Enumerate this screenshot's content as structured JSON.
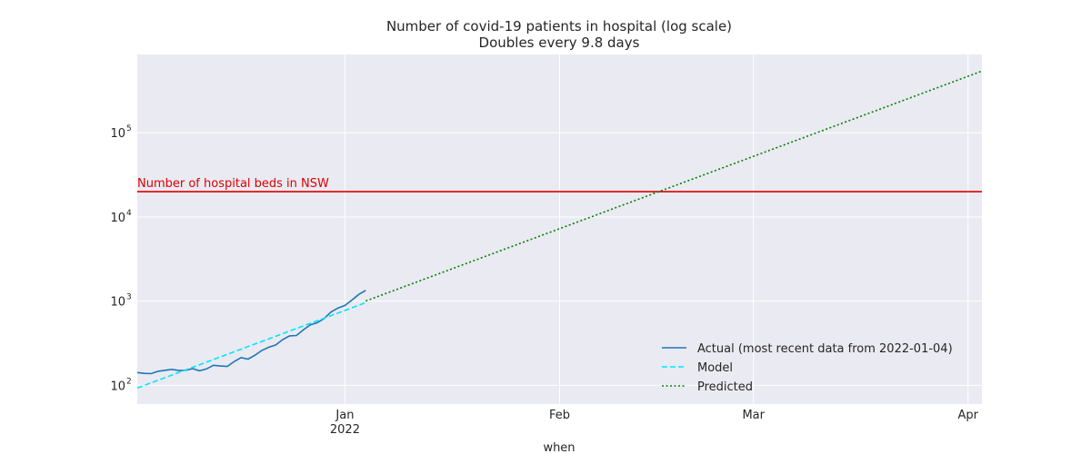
{
  "chart_data": {
    "type": "line",
    "title": "Number of covid-19 patients in hospital (log scale)",
    "subtitle": "Doubles every 9.8 days",
    "xlabel": "when",
    "ylabel": "",
    "y_scale": "log",
    "xlim": [
      "2021-12-02",
      "2022-04-03"
    ],
    "ylim": [
      60,
      850000
    ],
    "grid": true,
    "x_ticks": [
      {
        "date": "2022-01-01",
        "label": "Jan",
        "sublabel": "2022"
      },
      {
        "date": "2022-02-01",
        "label": "Feb",
        "sublabel": ""
      },
      {
        "date": "2022-03-01",
        "label": "Mar",
        "sublabel": ""
      },
      {
        "date": "2022-04-01",
        "label": "Apr",
        "sublabel": ""
      }
    ],
    "y_ticks": [
      {
        "value": 100,
        "base": "10",
        "exp": "2"
      },
      {
        "value": 1000,
        "base": "10",
        "exp": "3"
      },
      {
        "value": 10000,
        "base": "10",
        "exp": "4"
      },
      {
        "value": 100000,
        "base": "10",
        "exp": "5"
      }
    ],
    "hline": {
      "value": 20000,
      "label": "Number of hospital beds in NSW",
      "color": "#dd0000"
    },
    "legend_position": "bottom-right",
    "series": [
      {
        "name": "Actual (most recent data from 2022-01-04)",
        "style": "solid",
        "color": "#1f77b4",
        "points": [
          [
            "2021-12-02",
            142
          ],
          [
            "2021-12-03",
            139
          ],
          [
            "2021-12-04",
            138
          ],
          [
            "2021-12-05",
            147
          ],
          [
            "2021-12-06",
            151
          ],
          [
            "2021-12-07",
            155
          ],
          [
            "2021-12-08",
            150
          ],
          [
            "2021-12-09",
            151
          ],
          [
            "2021-12-10",
            158
          ],
          [
            "2021-12-11",
            149
          ],
          [
            "2021-12-12",
            157
          ],
          [
            "2021-12-13",
            173
          ],
          [
            "2021-12-14",
            170
          ],
          [
            "2021-12-15",
            168
          ],
          [
            "2021-12-16",
            192
          ],
          [
            "2021-12-17",
            214
          ],
          [
            "2021-12-18",
            205
          ],
          [
            "2021-12-19",
            228
          ],
          [
            "2021-12-20",
            260
          ],
          [
            "2021-12-21",
            284
          ],
          [
            "2021-12-22",
            302
          ],
          [
            "2021-12-23",
            350
          ],
          [
            "2021-12-24",
            387
          ],
          [
            "2021-12-25",
            391
          ],
          [
            "2021-12-26",
            458
          ],
          [
            "2021-12-27",
            524
          ],
          [
            "2021-12-28",
            555
          ],
          [
            "2021-12-29",
            624
          ],
          [
            "2021-12-30",
            746
          ],
          [
            "2021-12-31",
            829
          ],
          [
            "2022-01-01",
            889
          ],
          [
            "2022-01-02",
            1029
          ],
          [
            "2022-01-03",
            1204
          ],
          [
            "2022-01-04",
            1344
          ]
        ]
      },
      {
        "name": "Model",
        "style": "dashed",
        "color": "#00e5ff",
        "points": [
          [
            "2021-12-02",
            93
          ],
          [
            "2022-01-04",
            960
          ]
        ]
      },
      {
        "name": "Predicted",
        "style": "dotted",
        "color": "#008000",
        "points": [
          [
            "2022-01-04",
            1005
          ],
          [
            "2022-04-03",
            540000
          ]
        ]
      }
    ]
  }
}
